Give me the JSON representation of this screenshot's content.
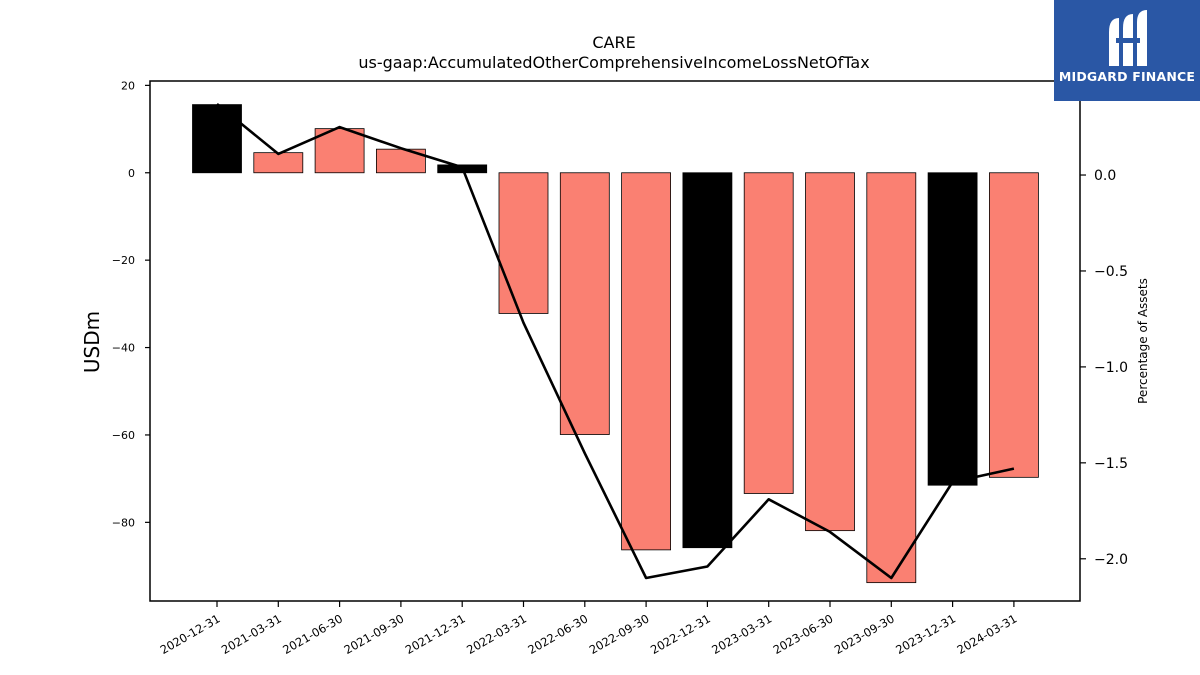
{
  "chart_data": {
    "type": "bar",
    "title": "CARE",
    "subtitle": "us-gaap:AccumulatedOtherComprehensiveIncomeLossNetOfTax",
    "ylabel": "USDm",
    "y2label": "Percentage of Assets",
    "categories": [
      "2020-12-31",
      "2021-03-31",
      "2021-06-30",
      "2021-09-30",
      "2021-12-31",
      "2022-03-31",
      "2022-06-30",
      "2022-09-30",
      "2022-12-31",
      "2023-03-31",
      "2023-06-30",
      "2023-09-30",
      "2023-12-31",
      "2024-03-31"
    ],
    "values": [
      15.6,
      4.6,
      10.1,
      5.4,
      1.8,
      -32.2,
      -59.9,
      -86.3,
      -85.8,
      -73.4,
      -81.9,
      -93.8,
      -71.5,
      -69.7
    ],
    "bar_colors": [
      "#000000",
      "#fa8072",
      "#fa8072",
      "#fa8072",
      "#000000",
      "#fa8072",
      "#fa8072",
      "#fa8072",
      "#000000",
      "#fa8072",
      "#fa8072",
      "#fa8072",
      "#000000",
      "#fa8072"
    ],
    "line_values": [
      0.37,
      0.11,
      0.25,
      0.14,
      0.04,
      -0.77,
      -1.45,
      -2.1,
      -2.04,
      -1.69,
      -1.86,
      -2.1,
      -1.6,
      -1.53
    ],
    "ylim": [
      -98,
      21
    ],
    "y2lim": [
      -2.22,
      0.49
    ],
    "yticks": [
      20,
      0,
      -20,
      -40,
      -60,
      -80
    ],
    "y2ticks": [
      0.0,
      -0.5,
      -1.0,
      -1.5,
      -2.0
    ],
    "y2tick_labels": [
      "0.0",
      "−0.5",
      "−1.0",
      "−1.5",
      "−2.0"
    ],
    "colors": {
      "highlight": "#000000",
      "bar": "#fa8072",
      "line": "#000000"
    }
  },
  "logo": {
    "text": "MIDGARD FINANCE",
    "background": "#2a57a5"
  }
}
